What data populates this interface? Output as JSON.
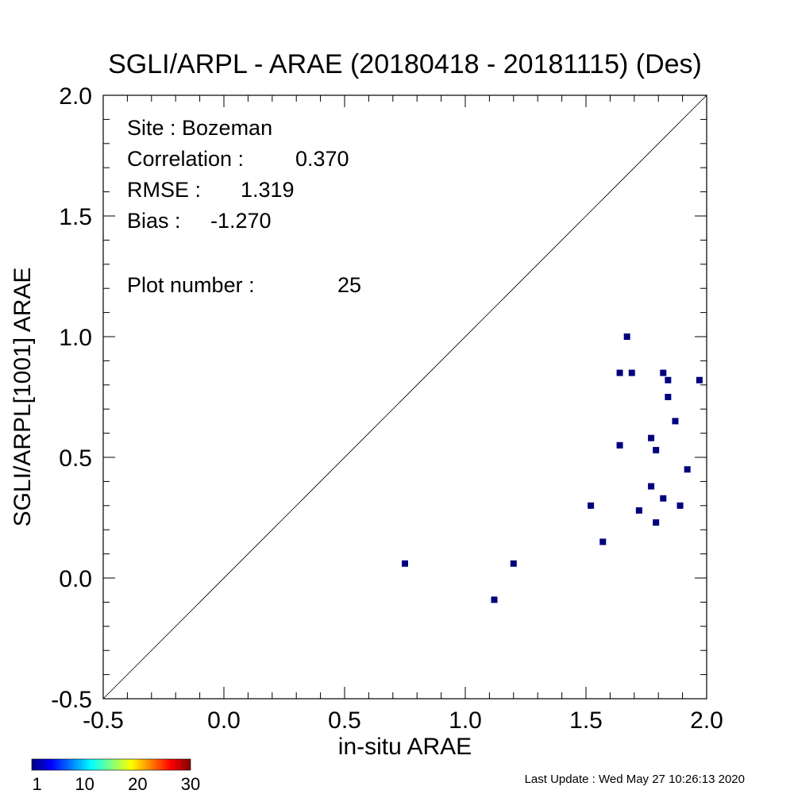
{
  "chart_data": {
    "type": "scatter",
    "title": "SGLI/ARPL - ARAE (20180418 - 20181115) (Des)",
    "xlabel": "in-situ ARAE",
    "ylabel": "SGLI/ARPL[1001]    ARAE",
    "xlim": [
      -0.5,
      2.0
    ],
    "ylim": [
      -0.5,
      2.0
    ],
    "x_ticks": [
      -0.5,
      0.0,
      0.5,
      1.0,
      1.5,
      2.0
    ],
    "y_ticks": [
      -0.5,
      0.0,
      0.5,
      1.0,
      1.5,
      2.0
    ],
    "x_tick_labels": [
      "-0.5",
      "0.0",
      "0.5",
      "1.0",
      "1.5",
      "2.0"
    ],
    "y_tick_labels": [
      "-0.5",
      "0.0",
      "0.5",
      "1.0",
      "1.5",
      "2.0"
    ],
    "reference_line": "1:1",
    "point_color": "#00007f",
    "points": [
      {
        "x": 0.75,
        "y": 0.06
      },
      {
        "x": 1.12,
        "y": -0.09
      },
      {
        "x": 1.2,
        "y": 0.06
      },
      {
        "x": 1.52,
        "y": 0.3
      },
      {
        "x": 1.57,
        "y": 0.15
      },
      {
        "x": 1.64,
        "y": 0.85
      },
      {
        "x": 1.64,
        "y": 0.55
      },
      {
        "x": 1.67,
        "y": 1.0
      },
      {
        "x": 1.69,
        "y": 0.85
      },
      {
        "x": 1.72,
        "y": 0.28
      },
      {
        "x": 1.77,
        "y": 0.58
      },
      {
        "x": 1.77,
        "y": 0.38
      },
      {
        "x": 1.79,
        "y": 0.53
      },
      {
        "x": 1.79,
        "y": 0.23
      },
      {
        "x": 1.82,
        "y": 0.85
      },
      {
        "x": 1.82,
        "y": 0.33
      },
      {
        "x": 1.84,
        "y": 0.82
      },
      {
        "x": 1.84,
        "y": 0.75
      },
      {
        "x": 1.87,
        "y": 0.65
      },
      {
        "x": 1.89,
        "y": 0.3
      },
      {
        "x": 1.92,
        "y": 0.45
      },
      {
        "x": 1.97,
        "y": 0.82
      }
    ],
    "stats": {
      "site": "Site : Bozeman",
      "correlation_label": "Correlation :",
      "correlation_value": "0.370",
      "rmse_label": "RMSE :",
      "rmse_value": "1.319",
      "bias_label": "Bias :",
      "bias_value": "-1.270",
      "plot_number_label": "Plot number :",
      "plot_number_value": "25"
    },
    "colorbar": {
      "tick_labels": [
        "1",
        "10",
        "20",
        "30"
      ],
      "tick_values": [
        1,
        10,
        20,
        30
      ],
      "range": [
        0,
        30
      ],
      "colors": [
        "#00007f",
        "#0000ff",
        "#0080ff",
        "#00ffff",
        "#80ff80",
        "#ffff00",
        "#ff8000",
        "#ff0000",
        "#7f0000"
      ]
    },
    "footer": "Last Update : Wed May 27 10:26:13 2020",
    "grid": false
  }
}
